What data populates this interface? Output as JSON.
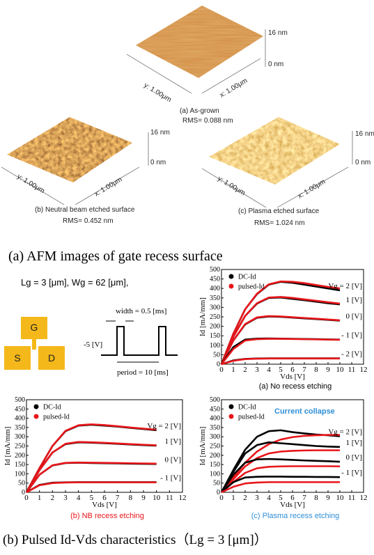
{
  "afm": {
    "title": "(a) AFM images of gate recess surface",
    "panels": [
      {
        "z_top": "16 nm",
        "z_bottom": "0 nm",
        "y_label": "y: 1.00μm",
        "x_label": "x: 1.00μm",
        "caption": "(a)  As-grown",
        "rms": "RMS= 0.088 nm"
      },
      {
        "z_top": "16 nm",
        "z_bottom": "0 nm",
        "y_label": "y: 1.00μm",
        "x_label": "x: 1.00μm",
        "caption": "(b) Neutral beam etched surface",
        "rms": "RMS= 0.452 nm"
      },
      {
        "z_top": "16 nm",
        "z_bottom": "0 nm",
        "y_label": "y: 1.00μm",
        "x_label": "x: 1.00μm",
        "caption": "(c) Plasma etched surface",
        "rms": "RMS= 1.024 nm"
      }
    ]
  },
  "device": {
    "dims": "Lg = 3 [μm], Wg = 62 [μm],",
    "gate": "G",
    "source": "S",
    "drain": "D",
    "width": "width = 0.5 [ms]",
    "low": "-5 [V]",
    "period": "period = 10 [ms]"
  },
  "chart_data": [
    {
      "type": "line",
      "caption": "(a) No recess etching",
      "caption_color": "#000000",
      "x_label": "Vds [V]",
      "y_label": "Id [mA/mm]",
      "xlim": [
        0,
        12
      ],
      "ylim": [
        0,
        500
      ],
      "xticks": [
        0,
        1,
        2,
        3,
        4,
        5,
        6,
        7,
        8,
        9,
        10,
        11,
        12
      ],
      "yticks": [
        0,
        50,
        100,
        150,
        200,
        250,
        300,
        350,
        400,
        450,
        500
      ],
      "x": [
        0,
        1,
        2,
        3,
        4,
        5,
        6,
        7,
        8,
        9,
        10
      ],
      "curve_labels": [
        "Vg = 2 [V]",
        "1 [V]",
        "0 [V]",
        "- 1 [V]",
        "- 2 [V]"
      ],
      "series": [
        {
          "name": "DC-Id",
          "color": "#000000",
          "values": [
            0,
            160,
            290,
            370,
            420,
            435,
            430,
            420,
            410,
            400,
            390
          ]
        },
        {
          "name": "pulsed-Id",
          "color": "#e8161b",
          "values": [
            0,
            160,
            290,
            372,
            422,
            437,
            435,
            428,
            418,
            408,
            400
          ]
        },
        {
          "name": "DC-Id",
          "color": "#000000",
          "values": [
            0,
            145,
            255,
            320,
            350,
            352,
            345,
            338,
            330,
            322,
            316
          ]
        },
        {
          "name": "pulsed-Id",
          "color": "#e8161b",
          "values": [
            0,
            145,
            255,
            322,
            352,
            355,
            350,
            342,
            335,
            327,
            320
          ]
        },
        {
          "name": "DC-Id",
          "color": "#000000",
          "values": [
            0,
            125,
            210,
            245,
            252,
            250,
            246,
            242,
            238,
            234,
            230
          ]
        },
        {
          "name": "pulsed-Id",
          "color": "#e8161b",
          "values": [
            0,
            125,
            212,
            247,
            254,
            252,
            248,
            244,
            240,
            236,
            232
          ]
        },
        {
          "name": "DC-Id",
          "color": "#000000",
          "values": [
            0,
            90,
            130,
            135,
            136,
            135,
            134,
            133,
            132,
            131,
            130
          ]
        },
        {
          "name": "pulsed-Id",
          "color": "#e8161b",
          "values": [
            0,
            80,
            125,
            132,
            134,
            134,
            133,
            132,
            131,
            130,
            129
          ]
        },
        {
          "name": "DC-Id",
          "color": "#000000",
          "values": [
            0,
            20,
            28,
            30,
            31,
            31,
            31,
            31,
            31,
            31,
            31
          ]
        },
        {
          "name": "pulsed-Id",
          "color": "#e8161b",
          "values": [
            0,
            18,
            27,
            29,
            30,
            30,
            30,
            30,
            30,
            30,
            30
          ]
        }
      ]
    },
    {
      "type": "line",
      "caption": "(b) NB recess etching",
      "caption_color": "#e8161b",
      "x_label": "Vds [V]",
      "y_label": "Id [mA/mm]",
      "xlim": [
        0,
        12
      ],
      "ylim": [
        0,
        500
      ],
      "xticks": [
        0,
        1,
        2,
        3,
        4,
        5,
        6,
        7,
        8,
        9,
        10,
        11,
        12
      ],
      "yticks": [
        0,
        50,
        100,
        150,
        200,
        250,
        300,
        350,
        400,
        450,
        500
      ],
      "x": [
        0,
        1,
        2,
        3,
        4,
        5,
        6,
        7,
        8,
        9,
        10
      ],
      "curve_labels": [
        "Vg = 2 [V]",
        "1 [V]",
        "0 [V]",
        "- 1 [V]"
      ],
      "series": [
        {
          "name": "DC-Id",
          "color": "#000000",
          "values": [
            0,
            130,
            250,
            330,
            360,
            365,
            360,
            355,
            348,
            342,
            335
          ]
        },
        {
          "name": "pulsed-Id",
          "color": "#e8161b",
          "values": [
            0,
            130,
            250,
            332,
            362,
            367,
            363,
            357,
            350,
            344,
            338
          ]
        },
        {
          "name": "DC-Id",
          "color": "#000000",
          "values": [
            0,
            120,
            215,
            260,
            270,
            268,
            265,
            262,
            258,
            255,
            252
          ]
        },
        {
          "name": "pulsed-Id",
          "color": "#e8161b",
          "values": [
            0,
            120,
            215,
            262,
            272,
            270,
            267,
            264,
            260,
            257,
            254
          ]
        },
        {
          "name": "DC-Id",
          "color": "#000000",
          "values": [
            0,
            95,
            145,
            158,
            160,
            158,
            157,
            156,
            155,
            154,
            153
          ]
        },
        {
          "name": "pulsed-Id",
          "color": "#e8161b",
          "values": [
            0,
            95,
            146,
            159,
            161,
            160,
            159,
            158,
            157,
            156,
            155
          ]
        },
        {
          "name": "DC-Id",
          "color": "#000000",
          "values": [
            0,
            40,
            52,
            54,
            55,
            55,
            55,
            55,
            55,
            55,
            55
          ]
        },
        {
          "name": "pulsed-Id",
          "color": "#e8161b",
          "values": [
            0,
            38,
            50,
            53,
            54,
            54,
            54,
            54,
            54,
            54,
            54
          ]
        }
      ]
    },
    {
      "type": "line",
      "caption": "(c) Plasma recess etching",
      "caption_color": "#2f8fd6",
      "x_label": "Vds [V]",
      "y_label": "Id [mA/mm]",
      "annotation": "Current collapse",
      "xlim": [
        0,
        12
      ],
      "ylim": [
        0,
        500
      ],
      "xticks": [
        0,
        1,
        2,
        3,
        4,
        5,
        6,
        7,
        8,
        9,
        10,
        11,
        12
      ],
      "yticks": [
        0,
        50,
        100,
        150,
        200,
        250,
        300,
        350,
        400,
        450,
        500
      ],
      "x": [
        0,
        1,
        2,
        3,
        4,
        5,
        6,
        7,
        8,
        9,
        10
      ],
      "curve_labels": [
        "Vg = 2 [V]",
        "1 [V]",
        "0 [V]",
        "- 1 [V]"
      ],
      "series": [
        {
          "name": "DC-Id",
          "color": "#000000",
          "values": [
            0,
            120,
            230,
            300,
            330,
            335,
            325,
            318,
            312,
            308,
            303
          ]
        },
        {
          "name": "pulsed-Id",
          "color": "#e8161b",
          "values": [
            0,
            80,
            160,
            220,
            260,
            285,
            298,
            305,
            308,
            310,
            310
          ]
        },
        {
          "name": "DC-Id",
          "color": "#000000",
          "values": [
            0,
            110,
            210,
            255,
            270,
            265,
            260,
            255,
            250,
            247,
            245
          ]
        },
        {
          "name": "pulsed-Id",
          "color": "#e8161b",
          "values": [
            0,
            70,
            140,
            185,
            210,
            220,
            224,
            226,
            227,
            227,
            227
          ]
        },
        {
          "name": "DC-Id",
          "color": "#000000",
          "values": [
            0,
            95,
            160,
            178,
            180,
            178,
            175,
            172,
            170,
            168,
            165
          ]
        },
        {
          "name": "pulsed-Id",
          "color": "#e8161b",
          "values": [
            0,
            55,
            105,
            130,
            138,
            140,
            141,
            141,
            141,
            141,
            140
          ]
        },
        {
          "name": "DC-Id",
          "color": "#000000",
          "values": [
            0,
            55,
            80,
            84,
            85,
            85,
            84,
            84,
            83,
            83,
            82
          ]
        },
        {
          "name": "pulsed-Id",
          "color": "#e8161b",
          "values": [
            0,
            30,
            48,
            53,
            55,
            55,
            55,
            55,
            55,
            55,
            55
          ]
        }
      ]
    }
  ],
  "caption": "(b) Pulsed Id-Vds characteristics（Lg = 3 [μm]）"
}
